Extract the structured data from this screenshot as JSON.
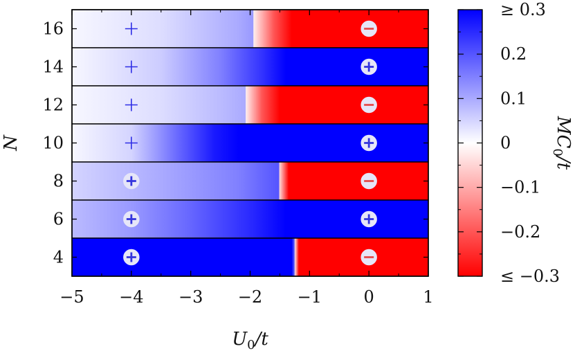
{
  "chart_data": {
    "type": "heatmap",
    "title": "",
    "xlabel": "U_0/t",
    "ylabel": "N",
    "xlim": [
      -5,
      1
    ],
    "x_ticks": [
      -5,
      -4,
      -3,
      -2,
      -1,
      0,
      1
    ],
    "x_tick_labels": [
      "−5",
      "−4",
      "−3",
      "−2",
      "−1",
      "0",
      "1"
    ],
    "rows": [
      {
        "N": 16,
        "N_label": "16",
        "stops": [
          [
            -5,
            0.01
          ],
          [
            -3.5,
            0.04
          ],
          [
            -2.2,
            0.1
          ],
          [
            -1.95,
            0.12
          ],
          [
            -1.94,
            -0.02
          ],
          [
            -1.6,
            -0.2
          ],
          [
            -1.3,
            -0.3
          ],
          [
            1,
            -0.3
          ]
        ],
        "markers": [
          {
            "x": -4,
            "sign": "+",
            "circled": false
          },
          {
            "x": 0,
            "sign": "−",
            "circled": true
          }
        ]
      },
      {
        "N": 14,
        "N_label": "14",
        "stops": [
          [
            -5,
            0.01
          ],
          [
            -3.5,
            0.06
          ],
          [
            -2.5,
            0.15
          ],
          [
            -1.8,
            0.24
          ],
          [
            -1.4,
            0.3
          ],
          [
            1,
            0.3
          ]
        ],
        "markers": [
          {
            "x": -4,
            "sign": "+",
            "circled": false
          },
          {
            "x": 0,
            "sign": "+",
            "circled": true
          }
        ]
      },
      {
        "N": 12,
        "N_label": "12",
        "stops": [
          [
            -5,
            0.01
          ],
          [
            -3.5,
            0.04
          ],
          [
            -2.5,
            0.08
          ],
          [
            -2.08,
            0.1
          ],
          [
            -2.07,
            -0.02
          ],
          [
            -1.8,
            -0.2
          ],
          [
            -1.5,
            -0.3
          ],
          [
            1,
            -0.3
          ]
        ],
        "markers": [
          {
            "x": -4,
            "sign": "+",
            "circled": false
          },
          {
            "x": 0,
            "sign": "−",
            "circled": true
          }
        ]
      },
      {
        "N": 10,
        "N_label": "10",
        "stops": [
          [
            -5,
            0.01
          ],
          [
            -4,
            0.05
          ],
          [
            -3.2,
            0.18
          ],
          [
            -2.6,
            0.27
          ],
          [
            -2.2,
            0.3
          ],
          [
            1,
            0.3
          ]
        ],
        "markers": [
          {
            "x": -4,
            "sign": "+",
            "circled": false
          },
          {
            "x": 0,
            "sign": "+",
            "circled": true
          }
        ]
      },
      {
        "N": 8,
        "N_label": "8",
        "stops": [
          [
            -5,
            0.05
          ],
          [
            -3.5,
            0.1
          ],
          [
            -2.2,
            0.15
          ],
          [
            -1.52,
            0.2
          ],
          [
            -1.5,
            -0.05
          ],
          [
            -1.35,
            -0.3
          ],
          [
            1,
            -0.3
          ]
        ],
        "markers": [
          {
            "x": -4,
            "sign": "+",
            "circled": true
          },
          {
            "x": 0,
            "sign": "−",
            "circled": true
          }
        ]
      },
      {
        "N": 6,
        "N_label": "6",
        "stops": [
          [
            -5,
            0.08
          ],
          [
            -4,
            0.12
          ],
          [
            -3,
            0.18
          ],
          [
            -2,
            0.25
          ],
          [
            -1.4,
            0.3
          ],
          [
            1,
            0.3
          ]
        ],
        "markers": [
          {
            "x": -4,
            "sign": "+",
            "circled": true
          },
          {
            "x": 0,
            "sign": "+",
            "circled": true
          }
        ]
      },
      {
        "N": 4,
        "N_label": "4",
        "stops": [
          [
            -5,
            0.3
          ],
          [
            -1.3,
            0.3
          ],
          [
            -1.26,
            0.2
          ],
          [
            -1.24,
            -0.05
          ],
          [
            -1.18,
            -0.3
          ],
          [
            1,
            -0.3
          ]
        ],
        "markers": [
          {
            "x": -4,
            "sign": "+",
            "circled": true
          },
          {
            "x": 0,
            "sign": "−",
            "circled": true
          }
        ]
      }
    ],
    "colorbar": {
      "label": "MC_0/t",
      "range": [
        -0.3,
        0.3
      ],
      "ticks": [
        0.3,
        0.2,
        0.1,
        0,
        -0.1,
        -0.2,
        -0.3
      ],
      "tick_labels": [
        "≥ 0.3",
        "0.2",
        "0.1",
        "0",
        "−0.1",
        "−0.2",
        "≤ −0.3"
      ],
      "colors": {
        "positive": "#0000ff",
        "zero": "#ffffff",
        "negative": "#ff0000"
      }
    }
  }
}
